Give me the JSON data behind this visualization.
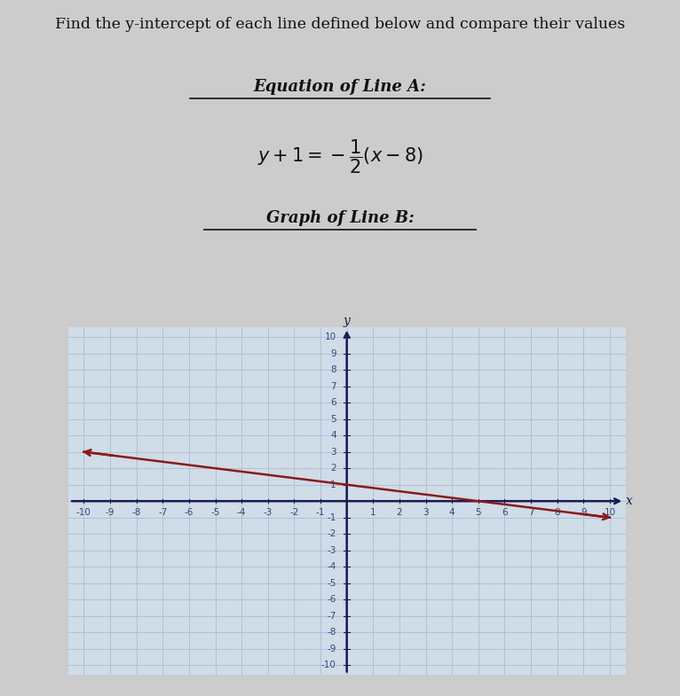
{
  "title_text": "Find the y-intercept of each line defined below and compare their values",
  "section1_title": "Equation of Line A:",
  "section2_title": "Graph of Line B:",
  "bg_color": "#cccccc",
  "graph_bg": "#d0dce8",
  "line_color": "#8b1a1a",
  "axis_color": "#1a1a4e",
  "grid_color": "#a0b8cc",
  "tick_label_color": "#2b4a7a",
  "x_min": -10,
  "x_max": 10,
  "y_min": -10,
  "y_max": 10,
  "line_slope": -0.2,
  "line_intercept": 1.0,
  "line_x_start": -10,
  "line_x_end": 10,
  "title_fontsize": 12.5,
  "section_fontsize": 13,
  "equation_fontsize": 15,
  "tick_fontsize": 7.5,
  "underline1_x": [
    0.28,
    0.72
  ],
  "underline2_x": [
    0.3,
    0.7
  ]
}
